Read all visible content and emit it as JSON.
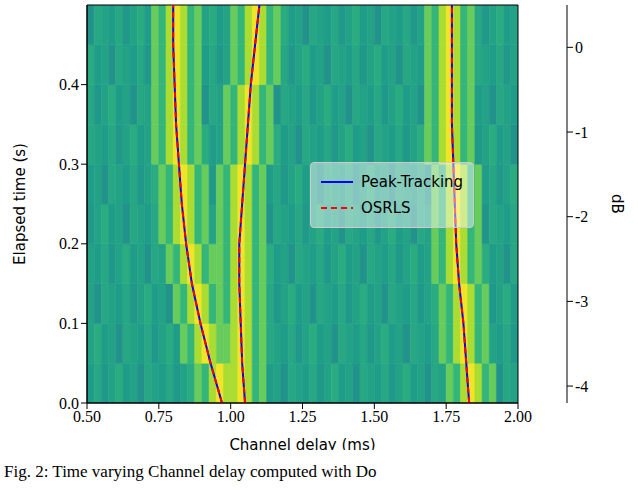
{
  "chart_data": {
    "type": "heatmap",
    "caption": "Fig. 2: Time varying Channel delay computed with Do",
    "x_label": "Channel delay (ms)",
    "y_label": "Elapsed time (s)",
    "xlim": [
      0.5,
      2
    ],
    "ylim": [
      0,
      0.5
    ],
    "xticks": [
      {
        "value": 0.5,
        "label": "0.50"
      },
      {
        "value": 0.75,
        "label": "0.75"
      },
      {
        "value": 1,
        "label": "1.00"
      },
      {
        "value": 1.25,
        "label": "1.25"
      },
      {
        "value": 1.5,
        "label": "1.50"
      },
      {
        "value": 1.75,
        "label": "1.75"
      },
      {
        "value": 2,
        "label": "2.00"
      }
    ],
    "yticks": [
      {
        "value": 0,
        "label": "0.0"
      },
      0.1,
      0.2,
      0.3,
      0.4
    ],
    "heatmap": {
      "x_bins": [
        0.5,
        0.525,
        0.55,
        0.575,
        0.6,
        0.625,
        0.65,
        0.675,
        0.7,
        0.725,
        0.75,
        0.775,
        0.8,
        0.825,
        0.85,
        0.875,
        0.9,
        0.925,
        0.95,
        0.975,
        1,
        1.025,
        1.05,
        1.075,
        1.1,
        1.125,
        1.15,
        1.175,
        1.2,
        1.225,
        1.25,
        1.275,
        1.3,
        1.325,
        1.35,
        1.375,
        1.4,
        1.425,
        1.45,
        1.475,
        1.5,
        1.525,
        1.55,
        1.575,
        1.6,
        1.625,
        1.65,
        1.675,
        1.7,
        1.725,
        1.75,
        1.775,
        1.8,
        1.825,
        1.85,
        1.875,
        1.9,
        1.925,
        1.95,
        1.975,
        2
      ],
      "y_bins": [
        0,
        0.05,
        0.1,
        0.15,
        0.2,
        0.25,
        0.3,
        0.35,
        0.4,
        0.45,
        0.5
      ],
      "cells": [
        [
          -1.6,
          -1.4,
          -1.7,
          -1.5,
          -1.3,
          -1.6,
          -1.5,
          -1.8,
          -1.4,
          -1.5,
          -1.6,
          -1.4,
          -1.7,
          -1.5,
          -1.3,
          -0.6,
          -1.1,
          -0.1,
          0.4,
          -0.1,
          -0.1,
          0.4,
          -0.1,
          -1.1,
          -0.6,
          -1.6,
          -1.5,
          -1.8,
          -1.4,
          -1.5,
          -1.6,
          -1.4,
          -1.7,
          -1.5,
          -1.3,
          -1.6,
          -1.5,
          -1.8,
          -1.4,
          -1.5,
          -1.6,
          -1.4,
          -1.7,
          -1.5,
          -1.3,
          -1.6,
          -1.5,
          -1.8,
          -1.4,
          -1.5,
          -0.6,
          -1.1,
          -0.1,
          0.4,
          -0.1,
          -1.1,
          -0.6,
          -1.8,
          -1.4,
          -1.5
        ],
        [
          -1.5,
          -1.3,
          -1.6,
          -1.5,
          -1.8,
          -1.4,
          -1.5,
          -1.6,
          -1.4,
          -1.7,
          -1.5,
          -1.3,
          -1.6,
          -0.6,
          -1.1,
          -0.1,
          0.4,
          -0.1,
          -0.6,
          -0.6,
          -0.1,
          0.4,
          -0.1,
          -1.1,
          -0.6,
          -1.4,
          -1.5,
          -1.6,
          -1.4,
          -1.7,
          -1.5,
          -1.3,
          -1.6,
          -1.5,
          -1.8,
          -1.4,
          -1.5,
          -1.6,
          -1.4,
          -1.7,
          -1.5,
          -1.3,
          -1.6,
          -1.5,
          -1.8,
          -1.4,
          -1.5,
          -1.6,
          -1.4,
          -0.6,
          -1.1,
          -0.1,
          0.4,
          -0.1,
          -1.1,
          -0.6,
          -1.5,
          -1.6,
          -1.4,
          -1.7
        ],
        [
          -1.5,
          -1.8,
          -1.4,
          -1.5,
          -1.6,
          -1.4,
          -1.7,
          -1.5,
          -1.3,
          -1.6,
          -1.5,
          -1.8,
          -0.6,
          -1.1,
          -0.1,
          0.4,
          -0.1,
          -1.1,
          -0.6,
          -1.1,
          -0.1,
          0.4,
          -0.1,
          -1.1,
          -0.6,
          -1.4,
          -1.7,
          -1.5,
          -1.3,
          -1.6,
          -1.5,
          -1.8,
          -1.4,
          -1.5,
          -1.6,
          -1.4,
          -1.7,
          -1.5,
          -1.3,
          -1.6,
          -1.5,
          -1.8,
          -1.4,
          -1.5,
          -1.6,
          -1.4,
          -1.7,
          -1.5,
          -1.3,
          -0.6,
          -1.1,
          -0.1,
          0.4,
          -0.1,
          -1.1,
          -0.6,
          -1.7,
          -1.5,
          -1.3,
          -1.6
        ],
        [
          -1.5,
          -1.6,
          -1.4,
          -1.7,
          -1.5,
          -1.3,
          -1.6,
          -1.5,
          -1.8,
          -1.4,
          -1.5,
          -0.6,
          -1.1,
          -0.1,
          0.4,
          -0.1,
          -1.1,
          -0.6,
          -0.6,
          -1.1,
          -0.1,
          0.4,
          -0.1,
          -1.1,
          -0.6,
          -1.3,
          -1.6,
          -1.5,
          -1.8,
          -1.4,
          -1.5,
          -1.6,
          -1.4,
          -1.7,
          -1.5,
          -1.3,
          -1.6,
          -1.5,
          -1.8,
          -1.4,
          -1.5,
          -1.6,
          -1.4,
          -1.7,
          -1.5,
          -1.3,
          -1.6,
          -1.5,
          -0.6,
          -1.1,
          -0.1,
          0.4,
          -0.1,
          -1.1,
          -0.6,
          -1.3,
          -1.6,
          -1.5,
          -1.8,
          -1.4
        ],
        [
          -1.7,
          -1.5,
          -1.3,
          -1.6,
          -1.5,
          -1.8,
          -1.4,
          -1.5,
          -1.6,
          -1.4,
          -0.6,
          -1.1,
          -0.1,
          0.4,
          -0.1,
          -1.1,
          -0.6,
          -1.5,
          -0.6,
          -1.1,
          -0.1,
          0.4,
          -0.1,
          -1.1,
          -0.6,
          -1.8,
          -1.4,
          -1.5,
          -1.6,
          -1.4,
          -1.7,
          -1.5,
          -1.3,
          -1.6,
          -1.5,
          -1.8,
          -1.4,
          -1.5,
          -1.6,
          -1.4,
          -1.7,
          -1.5,
          -1.3,
          -1.6,
          -1.5,
          -1.8,
          -1.4,
          -1.5,
          -0.6,
          -1.1,
          -0.1,
          0.4,
          -0.1,
          -1.1,
          -0.6,
          -1.8,
          -1.4,
          -1.5,
          -1.6,
          -1.4
        ],
        [
          -1.6,
          -1.5,
          -1.8,
          -1.4,
          -1.5,
          -1.6,
          -1.4,
          -1.7,
          -1.5,
          -1.3,
          -0.6,
          -1.1,
          -0.1,
          0.4,
          -0.1,
          -1.1,
          -0.6,
          -1.7,
          -0.6,
          -1.1,
          -0.1,
          0.4,
          -0.1,
          -1.1,
          -0.6,
          -1.6,
          -1.4,
          -1.7,
          -1.5,
          -1.3,
          -1.6,
          -1.5,
          -1.8,
          -1.4,
          -1.5,
          -1.6,
          -1.4,
          -1.7,
          -1.5,
          -1.3,
          -1.6,
          -1.5,
          -1.8,
          -1.4,
          -1.5,
          -1.6,
          -1.4,
          -1.7,
          -0.6,
          -1.1,
          -0.1,
          0.4,
          -0.1,
          -1.1,
          -0.6,
          -1.6,
          -1.4,
          -1.7,
          -1.5,
          -1.3
        ],
        [
          -1.4,
          -1.5,
          -1.6,
          -1.4,
          -1.7,
          -1.5,
          -1.3,
          -1.6,
          -1.5,
          -0.6,
          -1.1,
          -0.1,
          0.4,
          -0.1,
          -1.1,
          -0.6,
          -1.3,
          -1.6,
          -1.5,
          -0.6,
          -1.1,
          -0.1,
          0.4,
          -0.1,
          -1.1,
          -0.6,
          -1.3,
          -1.6,
          -1.5,
          -1.8,
          -1.4,
          -1.5,
          -1.6,
          -1.4,
          -1.7,
          -1.5,
          -1.3,
          -1.6,
          -1.5,
          -1.8,
          -1.4,
          -1.5,
          -1.6,
          -1.4,
          -1.7,
          -1.5,
          -1.3,
          -0.6,
          -1.1,
          -0.1,
          0.4,
          -0.1,
          -1.1,
          -0.6,
          -1.7,
          -1.5,
          -1.3,
          -1.6,
          -1.5,
          -1.8
        ],
        [
          -1.4,
          -1.7,
          -1.5,
          -1.3,
          -1.6,
          -1.5,
          -1.8,
          -1.4,
          -1.5,
          -0.6,
          -1.1,
          -0.1,
          0.4,
          -0.1,
          -1.1,
          -0.6,
          -1.8,
          -1.4,
          -1.5,
          -0.6,
          -1.1,
          -0.1,
          0.4,
          -0.1,
          -1.1,
          -0.6,
          -1.8,
          -1.4,
          -1.5,
          -1.6,
          -1.4,
          -1.7,
          -1.5,
          -1.3,
          -1.6,
          -1.5,
          -1.8,
          -1.4,
          -1.5,
          -1.6,
          -1.4,
          -1.7,
          -1.5,
          -1.3,
          -1.6,
          -1.5,
          -1.8,
          -0.6,
          -1.1,
          -0.1,
          0.4,
          -0.1,
          -1.1,
          -0.6,
          -1.6,
          -1.5,
          -1.8,
          -1.4,
          -1.5,
          -1.6
        ],
        [
          -1.3,
          -1.6,
          -1.5,
          -1.8,
          -1.4,
          -1.5,
          -1.6,
          -1.4,
          -1.7,
          -0.6,
          -1.1,
          -0.1,
          0.4,
          -0.1,
          -1.1,
          -0.6,
          -1.6,
          -1.4,
          -1.7,
          -1.5,
          -0.6,
          -1.1,
          -0.1,
          0.4,
          -0.1,
          -1.1,
          -0.6,
          -1.4,
          -1.7,
          -1.5,
          -1.3,
          -1.6,
          -1.5,
          -1.8,
          -1.4,
          -1.5,
          -1.6,
          -1.4,
          -1.7,
          -1.5,
          -1.3,
          -1.6,
          -1.5,
          -1.8,
          -1.4,
          -1.5,
          -1.6,
          -0.6,
          -1.1,
          -0.1,
          0.4,
          -0.1,
          -1.1,
          -0.6,
          -1.4,
          -1.5,
          -1.6,
          -1.4,
          -1.7,
          -1.5
        ],
        [
          -1.8,
          -1.4,
          -1.5,
          -1.6,
          -1.4,
          -1.7,
          -1.5,
          -1.3,
          -1.6,
          -0.6,
          -1.1,
          -0.1,
          0.4,
          -0.1,
          -1.1,
          -0.6,
          -1.5,
          -1.3,
          -1.6,
          -1.5,
          -0.6,
          -1.1,
          -0.1,
          0.4,
          -0.1,
          -1.1,
          -0.6,
          -1.3,
          -1.6,
          -1.5,
          -1.8,
          -1.4,
          -1.5,
          -1.6,
          -1.4,
          -1.7,
          -1.5,
          -1.3,
          -1.6,
          -1.5,
          -1.8,
          -1.4,
          -1.5,
          -1.6,
          -1.4,
          -1.7,
          -1.5,
          -0.6,
          -1.1,
          -0.1,
          0.4,
          -0.1,
          -1.1,
          -0.6,
          -1.4,
          -1.7,
          -1.5,
          -1.3,
          -1.6,
          -1.5
        ]
      ]
    },
    "colorbar": {
      "label": "dB",
      "range": [
        -4.2,
        0.5
      ],
      "ticks": [
        -4,
        -3,
        -2,
        -1,
        0
      ]
    },
    "series": [
      {
        "name": "Peak-Tracking",
        "type": "line",
        "color": "#0000ff",
        "line_style": "solid",
        "tracks": [
          {
            "x": [
              0.97,
              0.93,
              0.895,
              0.865,
              0.845,
              0.83,
              0.82,
              0.81,
              0.805,
              0.8,
              0.8
            ],
            "y": [
              0,
              0.05,
              0.1,
              0.15,
              0.2,
              0.25,
              0.3,
              0.35,
              0.4,
              0.45,
              0.5
            ]
          },
          {
            "x": [
              1.05,
              1.04,
              1.035,
              1.03,
              1.03,
              1.04,
              1.05,
              1.06,
              1.07,
              1.085,
              1.1
            ],
            "y": [
              0,
              0.05,
              0.1,
              0.15,
              0.2,
              0.25,
              0.3,
              0.35,
              0.4,
              0.45,
              0.5
            ]
          },
          {
            "x": [
              1.83,
              1.82,
              1.81,
              1.795,
              1.785,
              1.78,
              1.775,
              1.77,
              1.77,
              1.77,
              1.77
            ],
            "y": [
              0,
              0.05,
              0.1,
              0.15,
              0.2,
              0.25,
              0.3,
              0.35,
              0.4,
              0.45,
              0.5
            ]
          }
        ]
      },
      {
        "name": "OSRLS",
        "type": "line",
        "color": "#ff0000",
        "line_style": "dashed",
        "tracks": [
          {
            "x": [
              0.97,
              0.93,
              0.895,
              0.865,
              0.845,
              0.83,
              0.82,
              0.81,
              0.805,
              0.8,
              0.8
            ],
            "y": [
              0,
              0.05,
              0.1,
              0.15,
              0.2,
              0.25,
              0.3,
              0.35,
              0.4,
              0.45,
              0.5
            ]
          },
          {
            "x": [
              1.05,
              1.04,
              1.035,
              1.03,
              1.03,
              1.04,
              1.05,
              1.06,
              1.07,
              1.085,
              1.1
            ],
            "y": [
              0,
              0.05,
              0.1,
              0.15,
              0.2,
              0.25,
              0.3,
              0.35,
              0.4,
              0.45,
              0.5
            ]
          },
          {
            "x": [
              1.83,
              1.82,
              1.81,
              1.795,
              1.785,
              1.78,
              1.775,
              1.77,
              1.77,
              1.77,
              1.77
            ],
            "y": [
              0,
              0.05,
              0.1,
              0.15,
              0.2,
              0.25,
              0.3,
              0.35,
              0.4,
              0.45,
              0.5
            ]
          }
        ]
      }
    ],
    "legend": "center right"
  }
}
